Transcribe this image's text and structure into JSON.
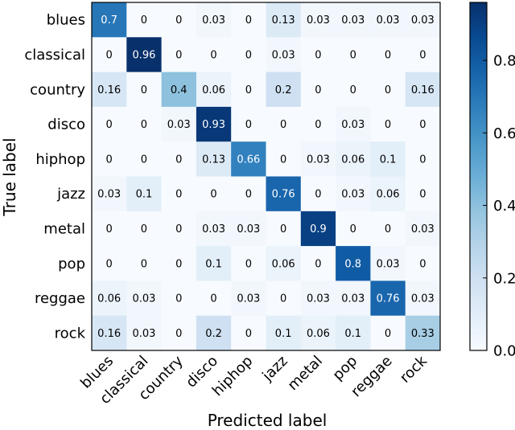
{
  "chart_data": {
    "type": "heatmap",
    "title": "",
    "xlabel": "Predicted label",
    "ylabel": "True label",
    "x_categories": [
      "blues",
      "classical",
      "country",
      "disco",
      "hiphop",
      "jazz",
      "metal",
      "pop",
      "reggae",
      "rock"
    ],
    "y_categories": [
      "blues",
      "classical",
      "country",
      "disco",
      "hiphop",
      "jazz",
      "metal",
      "pop",
      "reggae",
      "rock"
    ],
    "values": [
      [
        0.7,
        0.0,
        0.0,
        0.03,
        0.0,
        0.13,
        0.03,
        0.03,
        0.03,
        0.03
      ],
      [
        0.0,
        0.96,
        0.0,
        0.0,
        0.0,
        0.03,
        0.0,
        0.0,
        0.0,
        0.0
      ],
      [
        0.16,
        0.0,
        0.4,
        0.06,
        0.0,
        0.2,
        0.0,
        0.0,
        0.0,
        0.16
      ],
      [
        0.0,
        0.0,
        0.03,
        0.93,
        0.0,
        0.0,
        0.0,
        0.03,
        0.0,
        0.0
      ],
      [
        0.0,
        0.0,
        0.0,
        0.13,
        0.66,
        0.0,
        0.03,
        0.06,
        0.1,
        0.0
      ],
      [
        0.03,
        0.1,
        0.0,
        0.0,
        0.0,
        0.76,
        0.0,
        0.03,
        0.06,
        0.0
      ],
      [
        0.0,
        0.0,
        0.0,
        0.03,
        0.03,
        0.0,
        0.9,
        0.0,
        0.0,
        0.03
      ],
      [
        0.0,
        0.0,
        0.0,
        0.1,
        0.0,
        0.06,
        0.0,
        0.8,
        0.03,
        0.0
      ],
      [
        0.06,
        0.03,
        0.0,
        0.0,
        0.03,
        0.0,
        0.03,
        0.03,
        0.76,
        0.03
      ],
      [
        0.16,
        0.03,
        0.0,
        0.2,
        0.0,
        0.1,
        0.06,
        0.1,
        0.0,
        0.33
      ]
    ],
    "colorbar": {
      "range": [
        0,
        0.96
      ],
      "ticks": [
        0.0,
        0.2,
        0.4,
        0.6,
        0.8
      ],
      "tick_labels": [
        "0.0",
        "0.2",
        "0.4",
        "0.6",
        "0.8"
      ],
      "colormap": "Blues"
    },
    "grid": false,
    "colors": {
      "low": "#f7fbff",
      "high": "#08306b",
      "text_dark": "#000000",
      "text_light": "#ffffff"
    }
  }
}
